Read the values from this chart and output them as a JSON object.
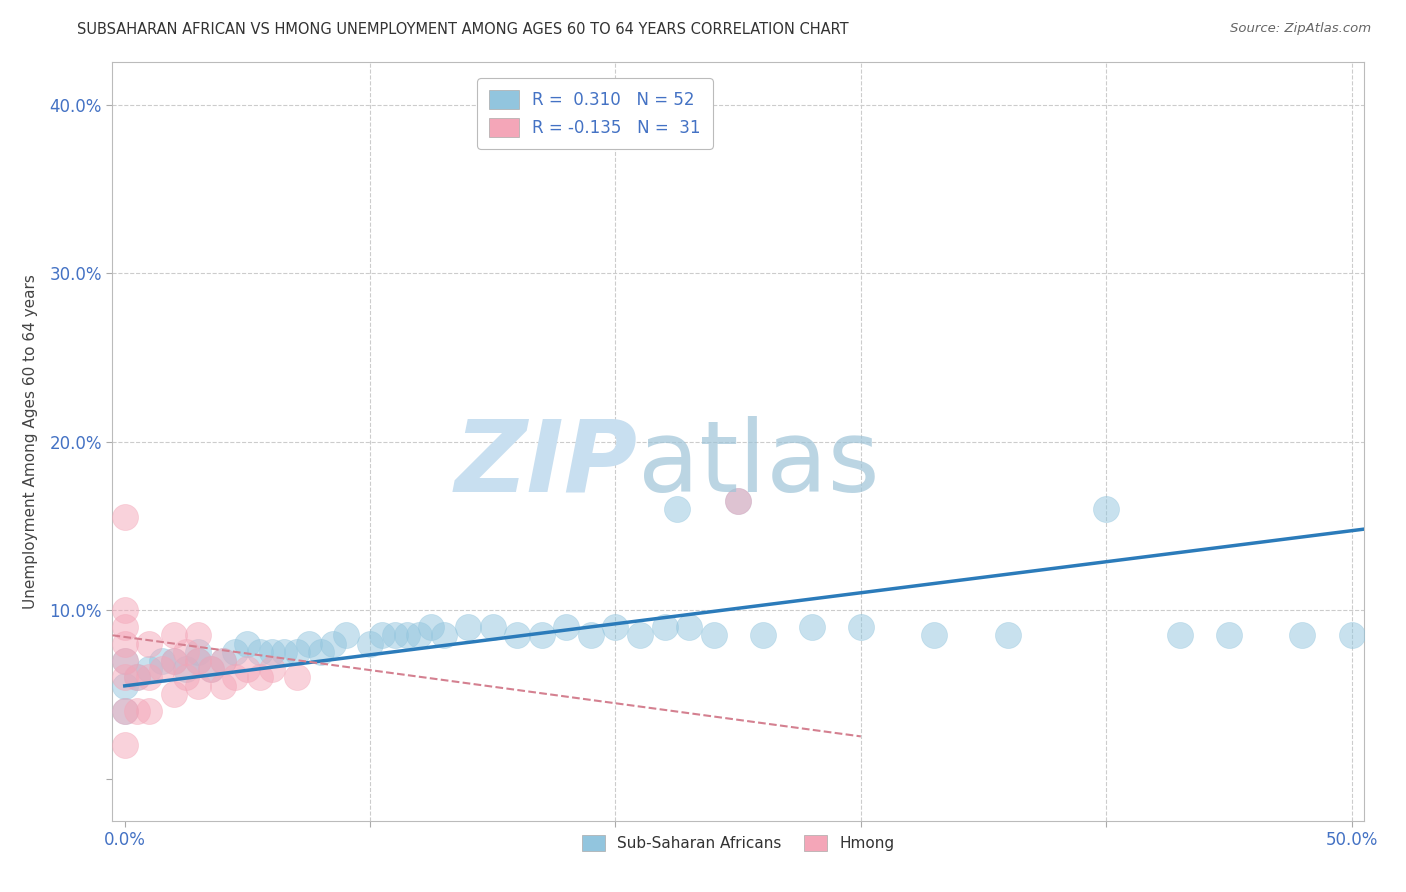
{
  "title": "SUBSAHARAN AFRICAN VS HMONG UNEMPLOYMENT AMONG AGES 60 TO 64 YEARS CORRELATION CHART",
  "source": "Source: ZipAtlas.com",
  "ylabel": "Unemployment Among Ages 60 to 64 years",
  "xlim": [
    -0.005,
    0.505
  ],
  "ylim": [
    -0.025,
    0.425
  ],
  "xticks": [
    0.0,
    0.1,
    0.2,
    0.3,
    0.4,
    0.5
  ],
  "yticks": [
    0.0,
    0.1,
    0.2,
    0.3,
    0.4
  ],
  "legend_label1": "R =  0.310   N = 52",
  "legend_label2": "R = -0.135   N =  31",
  "blue_color": "#92c5de",
  "pink_color": "#f4a6b8",
  "trend_blue": "#2b7bba",
  "trend_pink": "#d48090",
  "background": "#ffffff",
  "grid_color": "#cccccc",
  "blue_scatter_x": [
    0.0,
    0.0,
    0.0,
    0.005,
    0.01,
    0.015,
    0.02,
    0.025,
    0.03,
    0.03,
    0.035,
    0.04,
    0.045,
    0.05,
    0.055,
    0.06,
    0.065,
    0.07,
    0.075,
    0.08,
    0.085,
    0.09,
    0.1,
    0.105,
    0.11,
    0.115,
    0.12,
    0.125,
    0.13,
    0.14,
    0.15,
    0.16,
    0.17,
    0.18,
    0.19,
    0.2,
    0.21,
    0.22,
    0.225,
    0.23,
    0.24,
    0.25,
    0.26,
    0.28,
    0.3,
    0.33,
    0.36,
    0.4,
    0.43,
    0.45,
    0.48,
    0.5
  ],
  "blue_scatter_y": [
    0.04,
    0.055,
    0.07,
    0.06,
    0.065,
    0.07,
    0.07,
    0.065,
    0.07,
    0.075,
    0.065,
    0.07,
    0.075,
    0.08,
    0.075,
    0.075,
    0.075,
    0.075,
    0.08,
    0.075,
    0.08,
    0.085,
    0.08,
    0.085,
    0.085,
    0.085,
    0.085,
    0.09,
    0.085,
    0.09,
    0.09,
    0.085,
    0.085,
    0.09,
    0.085,
    0.09,
    0.085,
    0.09,
    0.16,
    0.09,
    0.085,
    0.165,
    0.085,
    0.09,
    0.09,
    0.085,
    0.085,
    0.16,
    0.085,
    0.085,
    0.085,
    0.085
  ],
  "pink_scatter_x": [
    0.0,
    0.0,
    0.0,
    0.0,
    0.0,
    0.0,
    0.0,
    0.0,
    0.005,
    0.005,
    0.01,
    0.01,
    0.01,
    0.015,
    0.02,
    0.02,
    0.02,
    0.025,
    0.025,
    0.03,
    0.03,
    0.03,
    0.035,
    0.04,
    0.04,
    0.045,
    0.05,
    0.055,
    0.06,
    0.07,
    0.25
  ],
  "pink_scatter_y": [
    0.02,
    0.04,
    0.06,
    0.07,
    0.08,
    0.09,
    0.1,
    0.155,
    0.04,
    0.06,
    0.04,
    0.06,
    0.08,
    0.065,
    0.05,
    0.07,
    0.085,
    0.06,
    0.075,
    0.055,
    0.07,
    0.085,
    0.065,
    0.055,
    0.07,
    0.06,
    0.065,
    0.06,
    0.065,
    0.06,
    0.165
  ],
  "blue_trend_x": [
    0.0,
    0.505
  ],
  "blue_trend_y": [
    0.055,
    0.148
  ],
  "pink_trend_x": [
    -0.005,
    0.3
  ],
  "pink_trend_y": [
    0.085,
    0.025
  ]
}
